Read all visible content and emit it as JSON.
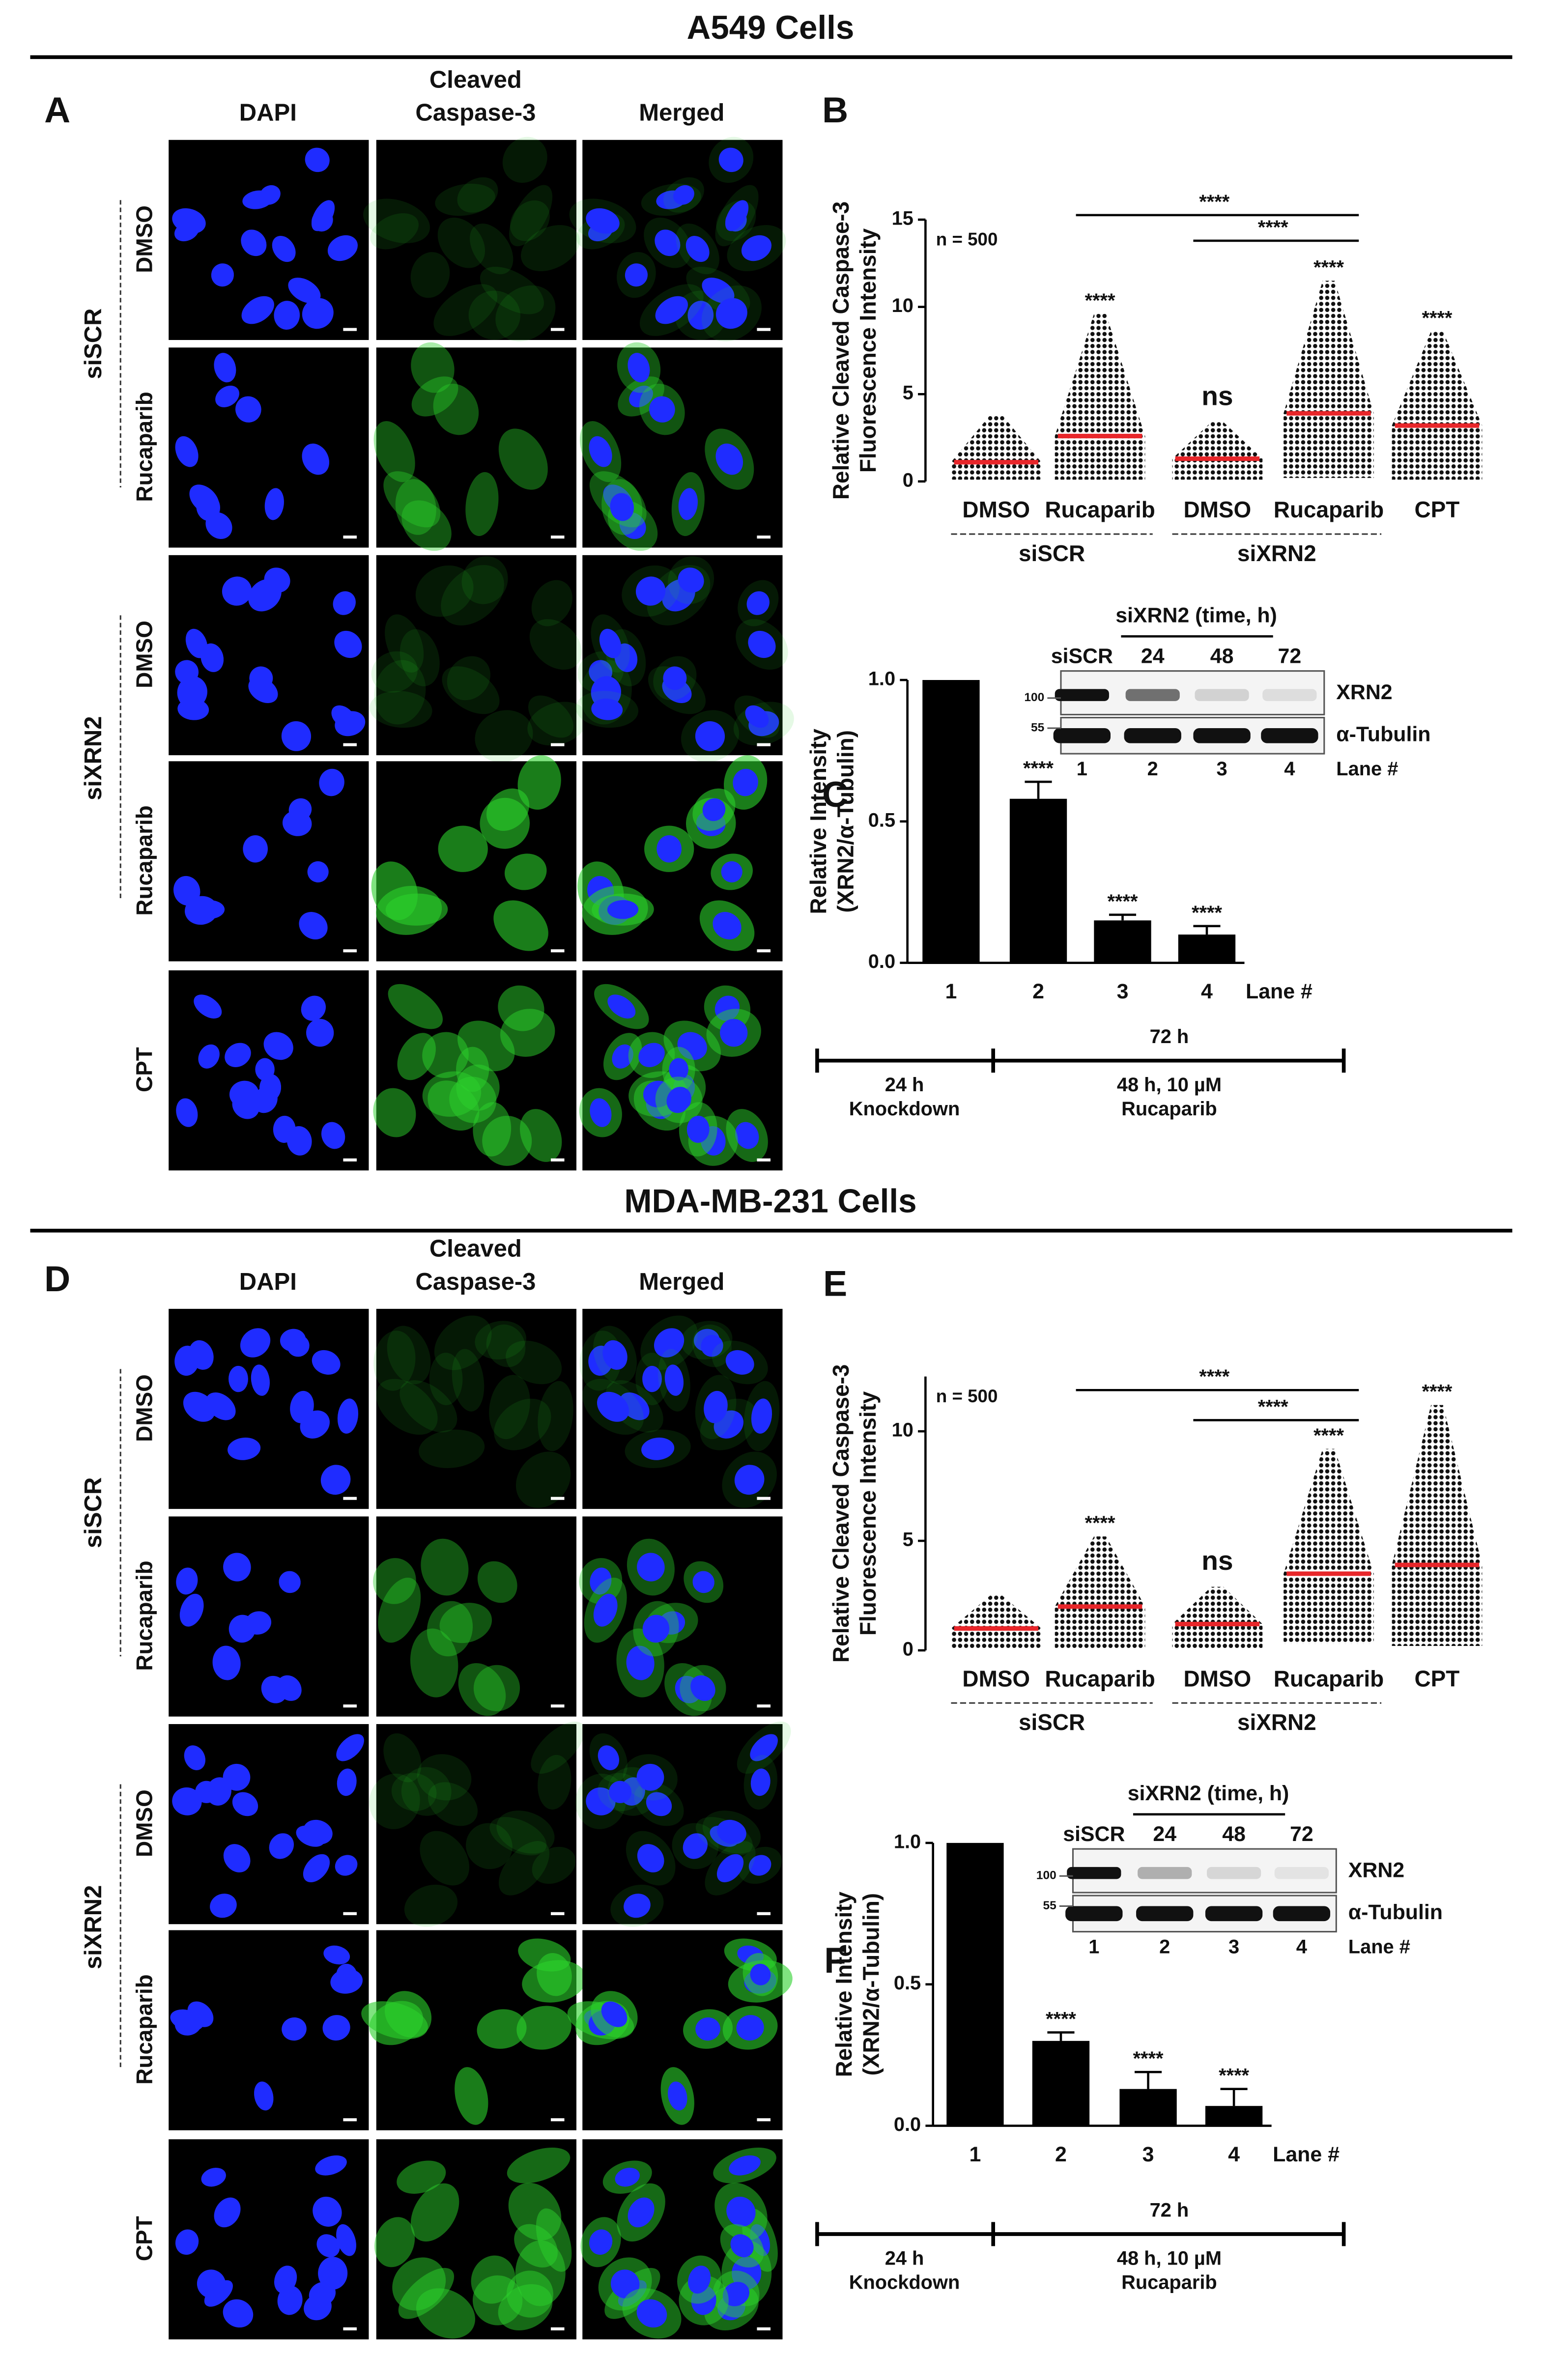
{
  "figure": {
    "section_titles": [
      "A549 Cells",
      "MDA-MB-231 Cells"
    ],
    "microscopy": [
      {
        "letter": "A",
        "columns": [
          {
            "lines": [
              "DAPI"
            ],
            "color": "#1a1aff"
          },
          {
            "lines": [
              "Cleaved",
              "Caspase-3"
            ],
            "color": "#1fc21f"
          },
          {
            "lines": [
              "Merged"
            ],
            "color": "#111111"
          }
        ],
        "rows": [
          "DMSO",
          "Rucaparib",
          "DMSO",
          "Rucaparib",
          "CPT"
        ],
        "groups": [
          "siSCR",
          "siXRN2"
        ]
      },
      {
        "letter": "D",
        "columns": [
          {
            "lines": [
              "DAPI"
            ],
            "color": "#1a1aff"
          },
          {
            "lines": [
              "Cleaved",
              "Caspase-3"
            ],
            "color": "#1fc21f"
          },
          {
            "lines": [
              "Merged"
            ],
            "color": "#111111"
          }
        ],
        "rows": [
          "DMSO",
          "Rucaparib",
          "DMSO",
          "Rucaparib",
          "CPT"
        ],
        "groups": [
          "siSCR",
          "siXRN2"
        ]
      }
    ]
  },
  "chart_data": [
    {
      "type": "dot",
      "letter": "B",
      "ylabel": [
        "Relative Cleaved Caspase-3",
        "Fluorescence Intensity"
      ],
      "annotation": "n = 500",
      "categories": [
        "DMSO",
        "Rucaparib",
        "DMSO",
        "Rucaparib",
        "CPT"
      ],
      "groups": [
        "siSCR",
        "siXRN2"
      ],
      "means": [
        1.1,
        2.6,
        1.3,
        3.9,
        3.2
      ],
      "minima": [
        0.1,
        0.1,
        0.1,
        0.2,
        0.1
      ],
      "maxima": [
        3.8,
        9.6,
        3.4,
        11.5,
        8.6
      ],
      "significance": [
        null,
        "****",
        "ns",
        "****",
        "****"
      ],
      "comparisons": [
        {
          "from": 1,
          "to": 3,
          "label": "****"
        },
        {
          "from": 2,
          "to": 3,
          "label": "****"
        }
      ],
      "ylim": [
        0,
        15
      ],
      "yticks": [
        0,
        5,
        10,
        15
      ],
      "dot_color": "#111111",
      "mean_color": "#e8262a"
    },
    {
      "type": "bar",
      "letter": "C",
      "ylabel": [
        "Relative Intensity",
        "(XRN2/α-Tubulin)"
      ],
      "categories": [
        "1",
        "2",
        "3",
        "4"
      ],
      "xlabel": "Lane #",
      "values": [
        1.0,
        0.58,
        0.15,
        0.1
      ],
      "errors": [
        null,
        0.06,
        0.02,
        0.03
      ],
      "significance": [
        null,
        "****",
        "****",
        "****"
      ],
      "ylim": [
        0,
        1
      ],
      "yticks": [
        {
          "value": 0,
          "label": "0.0"
        },
        {
          "value": 0.5,
          "label": "0.5"
        },
        {
          "value": 1,
          "label": "1.0"
        }
      ],
      "color": "#000000",
      "inset": {
        "title": "siXRN2 (time, h)",
        "lanes": [
          "siSCR",
          "24",
          "48",
          "72"
        ],
        "proteins": [
          "XRN2",
          "α-Tubulin"
        ],
        "markers": [
          "100",
          "55"
        ],
        "lane_numbers": [
          "1",
          "2",
          "3",
          "4"
        ],
        "lane_label": "Lane #"
      },
      "timeline": {
        "total": "72 h",
        "phases": [
          [
            "24 h",
            "Knockdown"
          ],
          [
            "48 h, 10 µM",
            "Rucaparib"
          ]
        ]
      }
    },
    {
      "type": "dot",
      "letter": "E",
      "ylabel": [
        "Relative Cleaved Caspase-3",
        "Fluorescence Intensity"
      ],
      "annotation": "n = 500",
      "categories": [
        "DMSO",
        "Rucaparib",
        "DMSO",
        "Rucaparib",
        "CPT"
      ],
      "groups": [
        "siSCR",
        "siXRN2"
      ],
      "means": [
        1.0,
        2.0,
        1.2,
        3.5,
        3.9
      ],
      "minima": [
        0.1,
        0.1,
        0.1,
        0.3,
        0.2
      ],
      "maxima": [
        2.5,
        5.2,
        2.9,
        9.2,
        11.2
      ],
      "significance": [
        null,
        "****",
        "ns",
        "****",
        "****"
      ],
      "comparisons": [
        {
          "from": 1,
          "to": 3,
          "label": "****"
        },
        {
          "from": 2,
          "to": 3,
          "label": "****"
        }
      ],
      "ylim": [
        0,
        12.5
      ],
      "yticks": [
        0,
        5,
        10
      ],
      "dot_color": "#111111",
      "mean_color": "#e8262a"
    },
    {
      "type": "bar",
      "letter": "F",
      "ylabel": [
        "Relative Intensity",
        "(XRN2/α-Tubulin)"
      ],
      "categories": [
        "1",
        "2",
        "3",
        "4"
      ],
      "xlabel": "Lane #",
      "values": [
        1.0,
        0.3,
        0.13,
        0.07
      ],
      "errors": [
        null,
        0.03,
        0.06,
        0.06
      ],
      "significance": [
        null,
        "****",
        "****",
        "****"
      ],
      "ylim": [
        0,
        1
      ],
      "yticks": [
        {
          "value": 0,
          "label": "0.0"
        },
        {
          "value": 0.5,
          "label": "0.5"
        },
        {
          "value": 1,
          "label": "1.0"
        }
      ],
      "color": "#000000",
      "inset": {
        "title": "siXRN2 (time, h)",
        "lanes": [
          "siSCR",
          "24",
          "48",
          "72"
        ],
        "proteins": [
          "XRN2",
          "α-Tubulin"
        ],
        "markers": [
          "100",
          "55"
        ],
        "lane_numbers": [
          "1",
          "2",
          "3",
          "4"
        ],
        "lane_label": "Lane #"
      },
      "timeline": {
        "total": "72 h",
        "phases": [
          [
            "24 h",
            "Knockdown"
          ],
          [
            "48 h, 10 µM",
            "Rucaparib"
          ]
        ]
      }
    }
  ]
}
